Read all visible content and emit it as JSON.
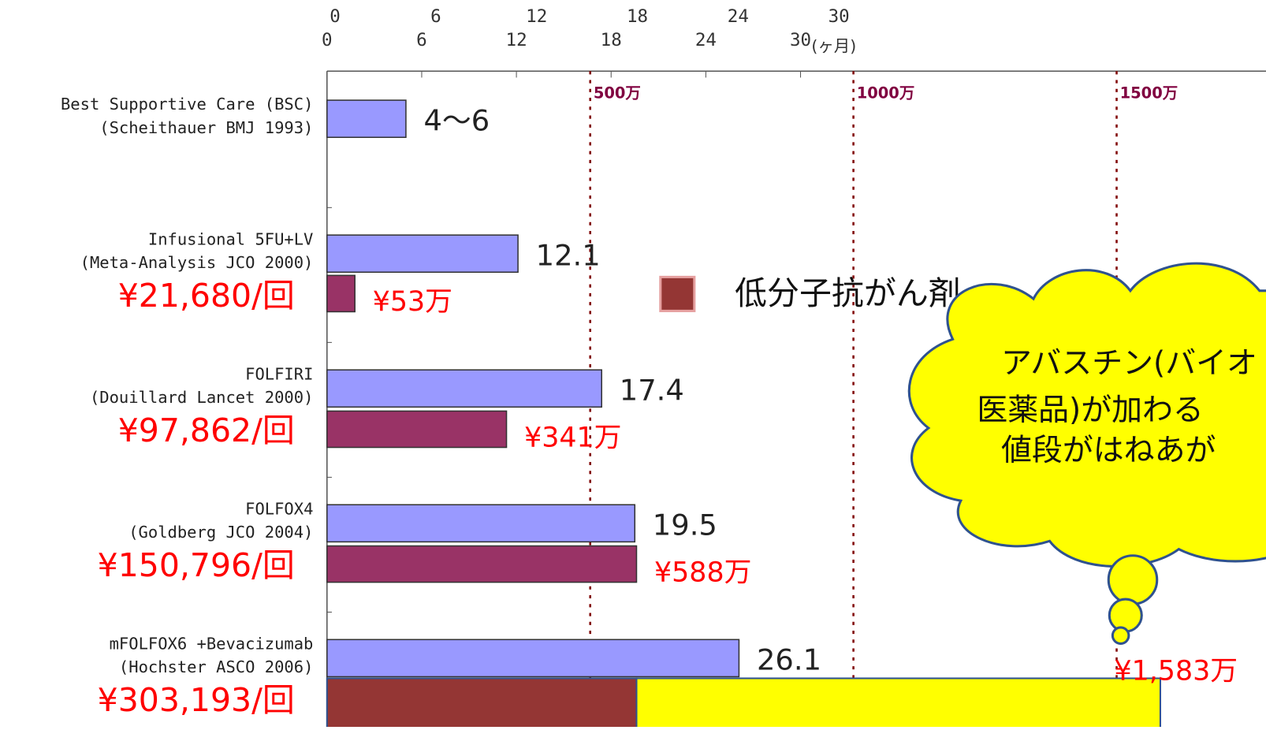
{
  "chart_data": {
    "type": "bar",
    "x_unit": "(ヶ月)",
    "xlim": [
      0,
      30
    ],
    "xticks": [
      0,
      6,
      12,
      18,
      24,
      30
    ],
    "cost_ticks": [
      {
        "value": 500,
        "label": "500万"
      },
      {
        "value": 1000,
        "label": "1000万"
      },
      {
        "value": 1500,
        "label": "1500万"
      }
    ],
    "categories": [
      "Best Supportive Care (BSC)",
      "Infusional 5FU+LV",
      "FOLFIRI",
      "FOLFOX4",
      "mFOLFOX6 +Bevacizumab"
    ],
    "sources": [
      "(Scheithauer BMJ 1993)",
      "(Meta-Analysis JCO 2000)",
      "(Douillard Lancet 2000)",
      "(Goldberg JCO 2004)",
      "(Hochster ASCO 2006)"
    ],
    "price_labels": [
      null,
      "¥21,680/回",
      "¥97,862/回",
      "¥150,796/回",
      "¥303,193/回"
    ],
    "series": [
      {
        "name": "survival",
        "color": "#9999ff",
        "values": [
          5,
          12.1,
          17.4,
          19.5,
          26.1
        ],
        "value_labels": [
          "4〜6",
          "12.1",
          "17.4",
          "19.5",
          "26.1"
        ]
      },
      {
        "name": "低分子抗がん剤",
        "color": "#993366",
        "values": [
          null,
          53,
          341,
          588,
          588
        ],
        "value_labels": [
          null,
          "¥53万",
          "¥341万",
          "¥588万",
          null
        ]
      }
    ],
    "bevacizumab_cost": {
      "value": 995,
      "color": "#ffff00"
    },
    "total_cost": {
      "value": 1583,
      "label": "¥1,583万"
    },
    "legend_color": "#943634",
    "cloud_text": [
      "アバスチン(バイオ",
      "医薬品)が加わる",
      "値段がはねあが"
    ]
  }
}
